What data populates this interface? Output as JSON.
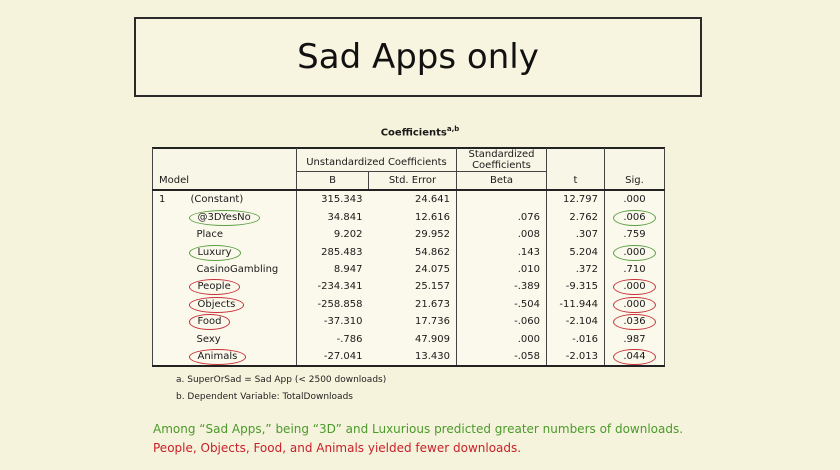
{
  "slide_title": "Sad Apps only",
  "table": {
    "title": "Coefficients",
    "title_superscript": "a,b",
    "header": {
      "model": "Model",
      "unstandardized": "Unstandardized Coefficients",
      "standardized_line1": "Standardized",
      "standardized_line2": "Coefficients",
      "b": "B",
      "std_error": "Std. Error",
      "beta": "Beta",
      "t": "t",
      "sig": "Sig."
    },
    "model_number": "1",
    "rows": [
      {
        "var": "(Constant)",
        "b": "315.343",
        "se": "24.641",
        "beta": "",
        "t": "12.797",
        "sig": ".000"
      },
      {
        "var": "@3DYesNo",
        "b": "34.841",
        "se": "12.616",
        "beta": ".076",
        "t": "2.762",
        "sig": ".006"
      },
      {
        "var": "Place",
        "b": "9.202",
        "se": "29.952",
        "beta": ".008",
        "t": ".307",
        "sig": ".759"
      },
      {
        "var": "Luxury",
        "b": "285.483",
        "se": "54.862",
        "beta": ".143",
        "t": "5.204",
        "sig": ".000"
      },
      {
        "var": "CasinoGambling",
        "b": "8.947",
        "se": "24.075",
        "beta": ".010",
        "t": ".372",
        "sig": ".710"
      },
      {
        "var": "People",
        "b": "-234.341",
        "se": "25.157",
        "beta": "-.389",
        "t": "-9.315",
        "sig": ".000"
      },
      {
        "var": "Objects",
        "b": "-258.858",
        "se": "21.673",
        "beta": "-.504",
        "t": "-11.944",
        "sig": ".000"
      },
      {
        "var": "Food",
        "b": "-37.310",
        "se": "17.736",
        "beta": "-.060",
        "t": "-2.104",
        "sig": ".036"
      },
      {
        "var": "Sexy",
        "b": "-.786",
        "se": "47.909",
        "beta": ".000",
        "t": "-.016",
        "sig": ".987"
      },
      {
        "var": "Animals",
        "b": "-27.041",
        "se": "13.430",
        "beta": "-.058",
        "t": "-2.013",
        "sig": ".044"
      }
    ],
    "footnote_a": "a. SuperOrSad = Sad App (< 2500 downloads)",
    "footnote_b": "b. Dependent Variable: TotalDownloads"
  },
  "summary": {
    "green_line": "Among “Sad Apps,” being “3D” and Luxurious predicted greater numbers of downloads.",
    "red_line": "People, Objects, Food, and Animals yielded fewer downloads."
  },
  "colors": {
    "background": "#f6f3dc",
    "positive_highlight": "#5aa042",
    "negative_highlight": "#c8323a"
  }
}
